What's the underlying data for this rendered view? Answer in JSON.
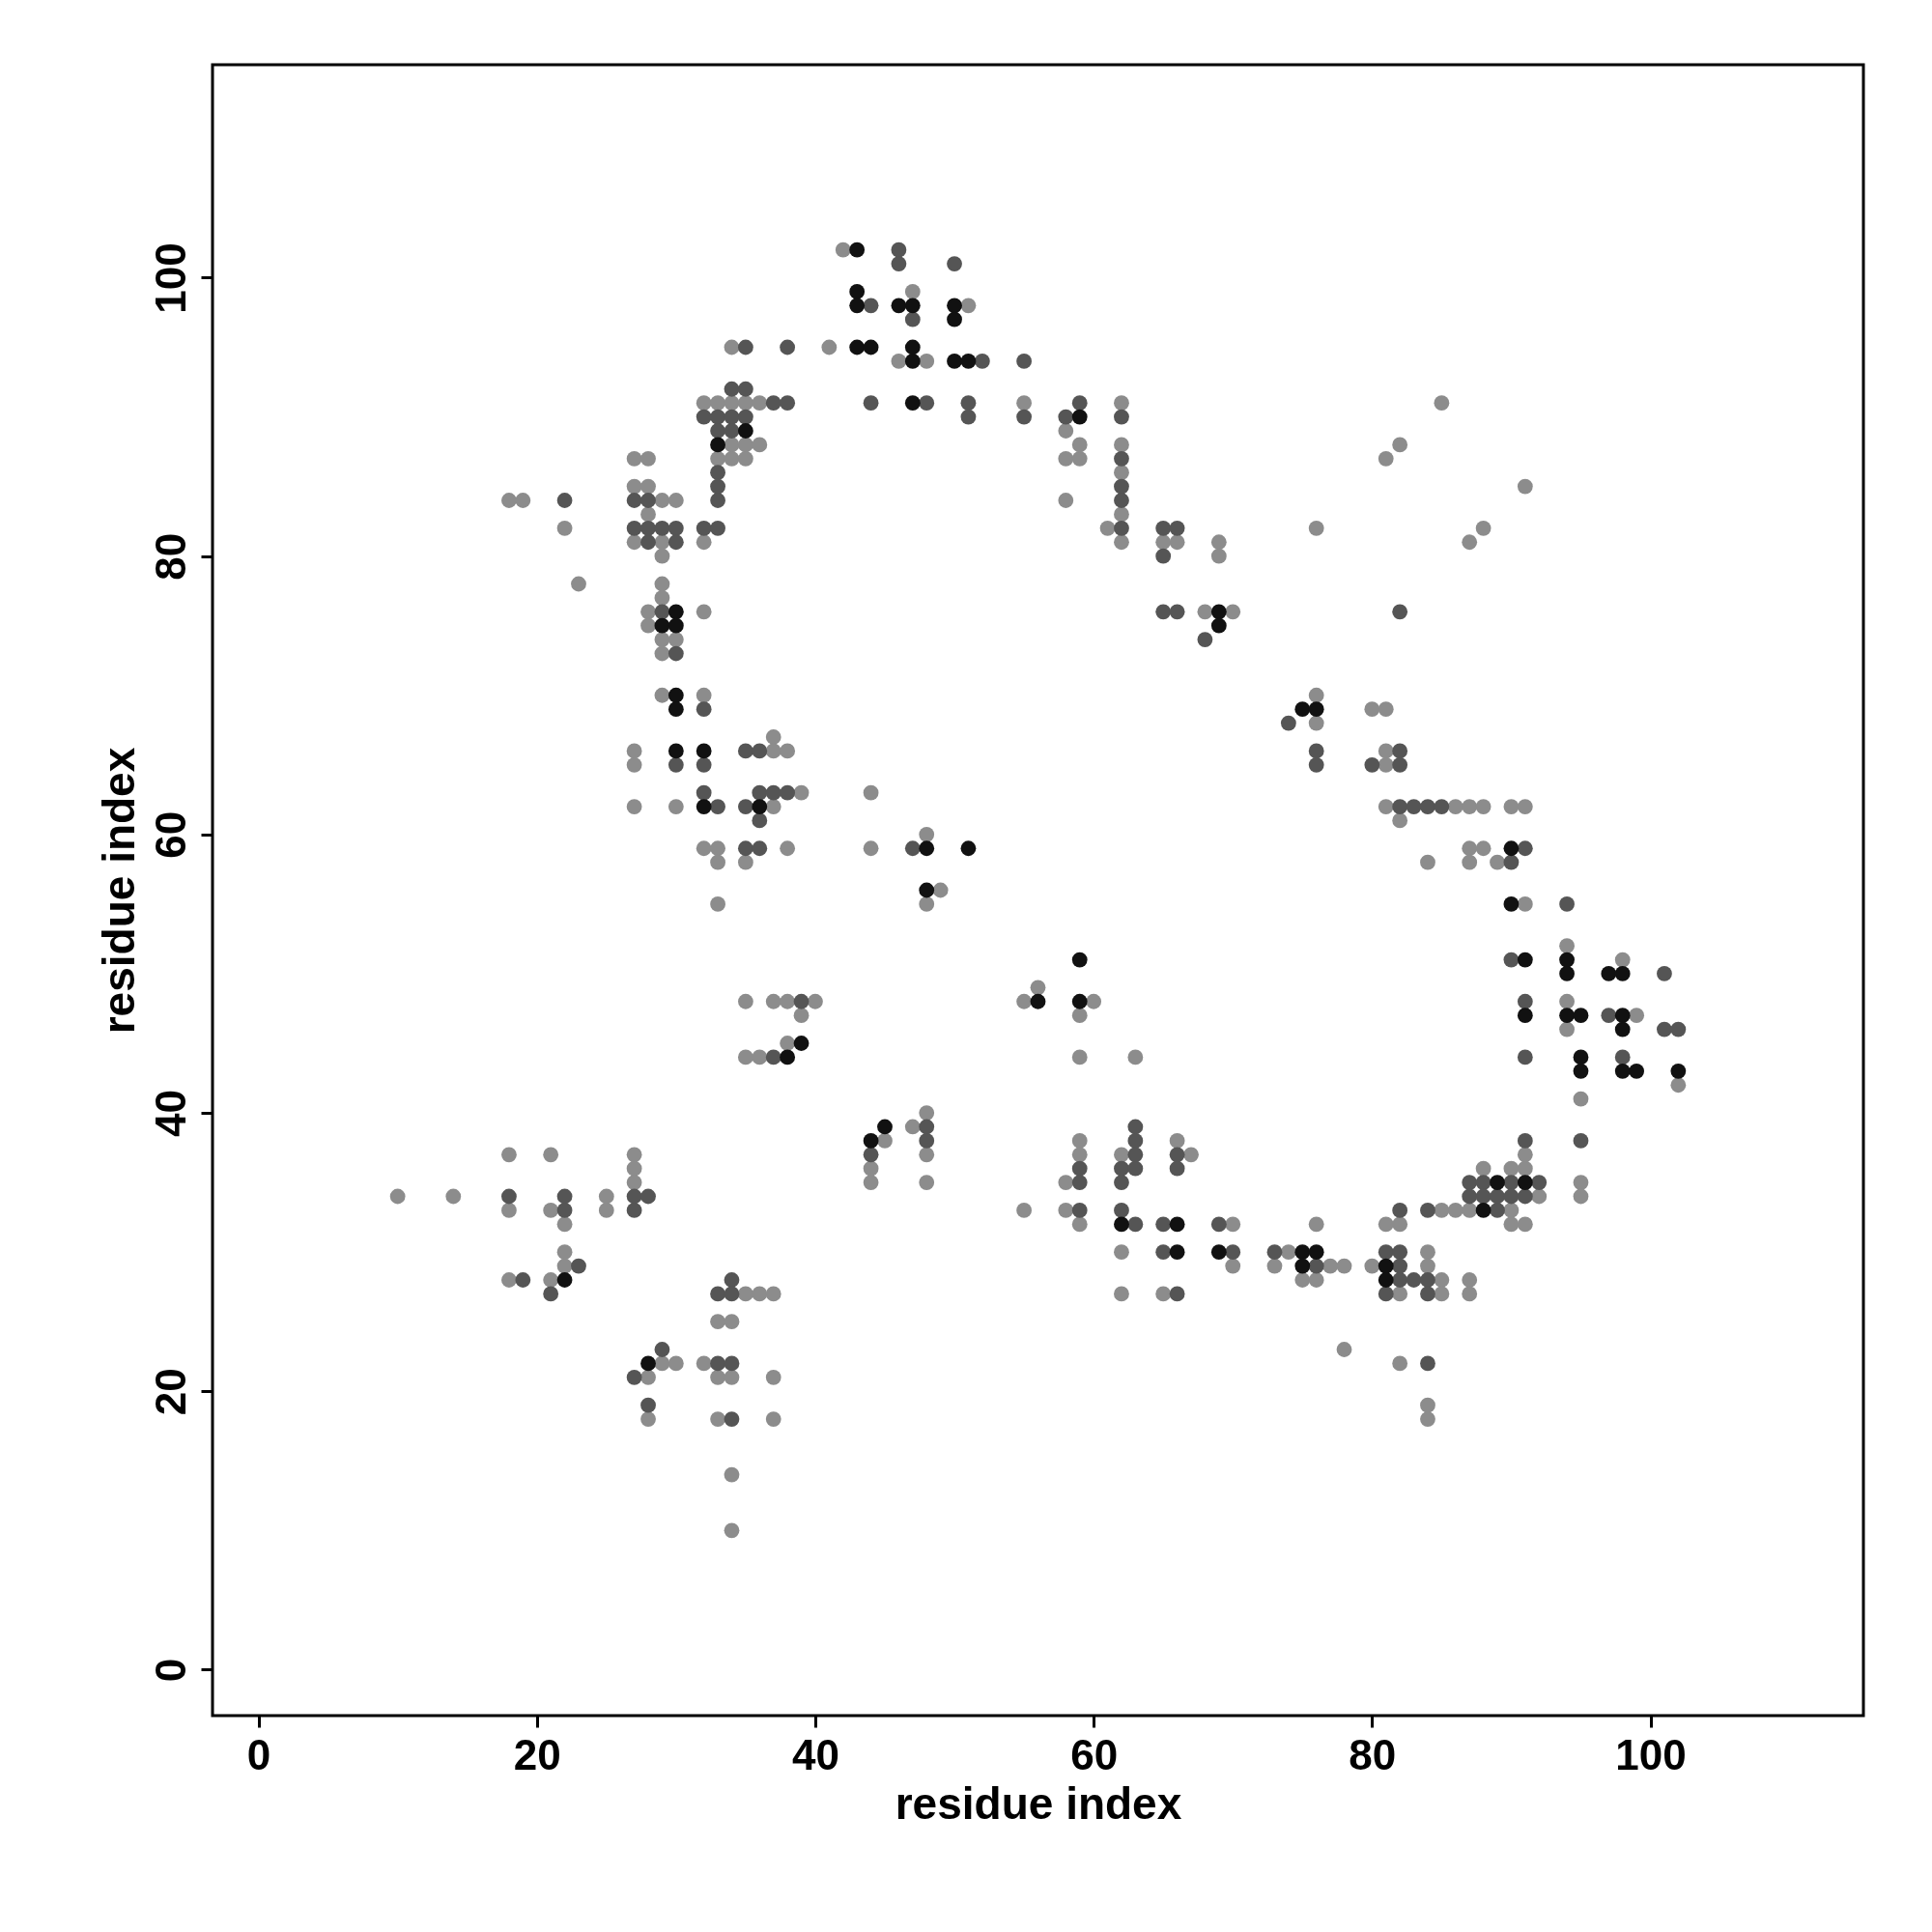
{
  "chart_data": {
    "type": "scatter",
    "xlabel": "residue index",
    "ylabel": "residue index",
    "xlim": [
      -3.3,
      115.3
    ],
    "ylim": [
      -3.3,
      115.3
    ],
    "xticks": [
      0,
      20,
      40,
      60,
      80,
      100
    ],
    "yticks": [
      0,
      20,
      40,
      60,
      80,
      100
    ],
    "marker": "circle",
    "series": [
      {
        "color": "#8c8c8c",
        "x": [
          42,
          41,
          47,
          46,
          48,
          51,
          55,
          34,
          32,
          33,
          34,
          35,
          36,
          34,
          35,
          36,
          33,
          34,
          35,
          32,
          27,
          28,
          27,
          28,
          29,
          30,
          28,
          27,
          29,
          29,
          18,
          19,
          22,
          23,
          29,
          29,
          28,
          28,
          30,
          29,
          29,
          32,
          29,
          32,
          27,
          27,
          27,
          30,
          32,
          33,
          33,
          33,
          37,
          37,
          38,
          39,
          37,
          38,
          35,
          35,
          37,
          38,
          40,
          39,
          35,
          36,
          38,
          44,
          44,
          48,
          49,
          48,
          58,
          58,
          59,
          59,
          58,
          62,
          62,
          62,
          62,
          61,
          62,
          65,
          66,
          69,
          69,
          68,
          70,
          76,
          76,
          76,
          80,
          81,
          81,
          81,
          81,
          86,
          87,
          88,
          90,
          91,
          82,
          81,
          82,
          85,
          87,
          88,
          91,
          84,
          87,
          88,
          87,
          89,
          91,
          94,
          94,
          94,
          95,
          95,
          95,
          98,
          99,
          102,
          55,
          56,
          60,
          59,
          59,
          63,
          45,
          44,
          44,
          47,
          48,
          48,
          48,
          55,
          58,
          59,
          59,
          58,
          59,
          62,
          62,
          62,
          66,
          67,
          65,
          70,
          70,
          74,
          73,
          77,
          78,
          76,
          75,
          76,
          78,
          80,
          81,
          82,
          82,
          85,
          85,
          84,
          84,
          87,
          87,
          82,
          84,
          84,
          85,
          86,
          87,
          88,
          90,
          90,
          91,
          91,
          92,
          90,
          91,
          10,
          14,
          18,
          18,
          21,
          21,
          22,
          25,
          25,
          22,
          22,
          21,
          18,
          27,
          27,
          27,
          28,
          29,
          30,
          28,
          35,
          36,
          37,
          33,
          34,
          32,
          33,
          34,
          33,
          37,
          37,
          34,
          34
        ],
        "values": [
          102,
          95,
          99,
          94,
          94,
          98,
          91,
          95,
          91,
          91,
          91,
          91,
          91,
          88,
          88,
          88,
          87,
          87,
          87,
          81,
          87,
          87,
          85,
          85,
          84,
          84,
          83,
          81,
          81,
          80,
          84,
          84,
          82,
          78,
          78,
          77,
          76,
          75,
          74,
          74,
          73,
          76,
          70,
          70,
          66,
          65,
          62,
          62,
          59,
          59,
          58,
          55,
          67,
          66,
          66,
          63,
          62,
          59,
          58,
          48,
          48,
          48,
          48,
          47,
          44,
          44,
          45,
          63,
          59,
          60,
          56,
          55,
          89,
          87,
          87,
          88,
          84,
          91,
          88,
          86,
          83,
          82,
          81,
          81,
          81,
          81,
          80,
          76,
          76,
          70,
          68,
          82,
          69,
          69,
          66,
          65,
          62,
          62,
          62,
          62,
          62,
          62,
          61,
          87,
          88,
          91,
          81,
          82,
          85,
          58,
          59,
          59,
          58,
          58,
          55,
          52,
          48,
          46,
          41,
          35,
          34,
          51,
          47,
          42,
          48,
          49,
          48,
          47,
          44,
          44,
          38,
          36,
          35,
          39,
          40,
          37,
          35,
          33,
          35,
          38,
          37,
          33,
          32,
          37,
          30,
          27,
          38,
          37,
          27,
          32,
          29,
          30,
          29,
          29,
          29,
          32,
          28,
          28,
          23,
          29,
          32,
          32,
          27,
          28,
          27,
          30,
          29,
          28,
          27,
          22,
          19,
          18,
          33,
          33,
          33,
          36,
          33,
          36,
          36,
          37,
          34,
          32,
          32,
          34,
          34,
          37,
          33,
          37,
          33,
          32,
          34,
          33,
          30,
          29,
          28,
          28,
          37,
          36,
          35,
          21,
          22,
          22,
          18,
          27,
          27,
          27,
          25,
          25,
          22,
          21,
          21,
          18,
          21,
          18,
          14,
          10
        ]
      },
      {
        "color": "#555555",
        "x": [
          44,
          44,
          46,
          46,
          47,
          48,
          50,
          52,
          51,
          51,
          55,
          55,
          35,
          38,
          34,
          35,
          32,
          33,
          34,
          35,
          33,
          34,
          37,
          38,
          33,
          33,
          33,
          32,
          33,
          27,
          28,
          27,
          28,
          29,
          30,
          28,
          30,
          22,
          29,
          30,
          32,
          30,
          32,
          32,
          33,
          35,
          36,
          36,
          37,
          38,
          35,
          36,
          35,
          36,
          39,
          37,
          47,
          58,
          59,
          62,
          62,
          62,
          62,
          62,
          65,
          66,
          65,
          65,
          66,
          68,
          74,
          76,
          76,
          82,
          80,
          82,
          82,
          83,
          84,
          85,
          82,
          90,
          91,
          90,
          91,
          91,
          94,
          95,
          97,
          98,
          101,
          101,
          102,
          44,
          48,
          48,
          59,
          59,
          59,
          63,
          63,
          63,
          62,
          63,
          62,
          62,
          63,
          66,
          66,
          65,
          65,
          66,
          69,
          70,
          73,
          76,
          81,
          82,
          82,
          82,
          82,
          81,
          83,
          84,
          84,
          84,
          84,
          87,
          87,
          88,
          88,
          89,
          89,
          90,
          90,
          92,
          91,
          91,
          18,
          22,
          22,
          23,
          21,
          19,
          27,
          28,
          27,
          27,
          29,
          28,
          33,
          34,
          34,
          33,
          34,
          34
        ],
        "values": [
          98,
          91,
          102,
          101,
          97,
          91,
          101,
          94,
          91,
          90,
          94,
          90,
          95,
          95,
          92,
          92,
          90,
          90,
          90,
          90,
          89,
          89,
          91,
          91,
          86,
          85,
          84,
          82,
          82,
          84,
          84,
          82,
          82,
          82,
          82,
          81,
          81,
          84,
          76,
          73,
          69,
          65,
          65,
          63,
          62,
          66,
          66,
          63,
          63,
          63,
          62,
          61,
          59,
          59,
          48,
          44,
          59,
          90,
          91,
          90,
          87,
          85,
          84,
          82,
          82,
          82,
          80,
          76,
          76,
          74,
          68,
          66,
          65,
          66,
          65,
          65,
          62,
          62,
          62,
          62,
          76,
          58,
          59,
          51,
          48,
          44,
          55,
          38,
          47,
          44,
          50,
          46,
          46,
          37,
          39,
          38,
          36,
          35,
          33,
          39,
          38,
          37,
          36,
          36,
          35,
          33,
          32,
          37,
          36,
          32,
          30,
          27,
          32,
          30,
          30,
          29,
          30,
          30,
          33,
          29,
          28,
          27,
          28,
          28,
          27,
          22,
          33,
          35,
          34,
          35,
          34,
          34,
          33,
          35,
          34,
          35,
          38,
          34,
          34,
          34,
          33,
          29,
          27,
          28,
          34,
          34,
          33,
          21,
          23,
          19,
          27,
          28,
          27,
          22,
          22,
          18
        ]
      },
      {
        "color": "#111111",
        "x": [
          43,
          43,
          43,
          46,
          47,
          43,
          44,
          47,
          47,
          47,
          50,
          50,
          50,
          51,
          35,
          33,
          30,
          29,
          30,
          30,
          30,
          30,
          32,
          32,
          36,
          38,
          39,
          48,
          51,
          48,
          59,
          69,
          69,
          75,
          76,
          90,
          90,
          91,
          91,
          94,
          94,
          94,
          95,
          95,
          95,
          97,
          98,
          98,
          98,
          98,
          99,
          102,
          56,
          59,
          59,
          44,
          45,
          62,
          66,
          66,
          69,
          75,
          76,
          75,
          81,
          81,
          88,
          89,
          91,
          22,
          28
        ],
        "values": [
          102,
          99,
          98,
          98,
          98,
          95,
          95,
          95,
          94,
          91,
          98,
          97,
          94,
          94,
          89,
          88,
          76,
          75,
          75,
          70,
          69,
          66,
          66,
          62,
          62,
          44,
          45,
          59,
          59,
          56,
          90,
          76,
          75,
          69,
          69,
          59,
          55,
          51,
          47,
          51,
          50,
          47,
          47,
          44,
          43,
          50,
          50,
          47,
          46,
          43,
          43,
          43,
          48,
          51,
          48,
          38,
          39,
          32,
          32,
          30,
          30,
          30,
          30,
          29,
          29,
          28,
          33,
          35,
          35,
          28,
          22
        ]
      }
    ]
  }
}
